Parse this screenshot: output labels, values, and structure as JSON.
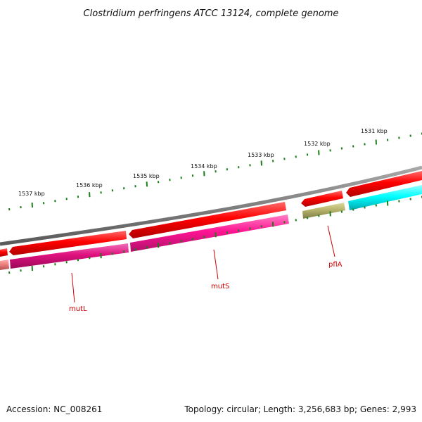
{
  "title": "Clostridium perfringens ATCC 13124, complete genome",
  "footer": {
    "accession": "Accession: NC_008261",
    "summary": "Topology: circular; Length: 3,256,683 bp; Genes: 2,993"
  },
  "ticks": {
    "major_labels": [
      "1531 kbp",
      "1532 kbp",
      "1533 kbp",
      "1534 kbp",
      "1535 kbp",
      "1536 kbp",
      "1537 kbp"
    ],
    "tick_color": "#1a7f1a"
  },
  "backbone_color": "#808080",
  "genes": {
    "forward_color": "#ff0000",
    "labels": [
      "mutL",
      "mutS",
      "pflA"
    ],
    "label_color": "#cc0000",
    "categories": {
      "mutL": "#e0107f",
      "mutS": "#ff1493",
      "pflA": "#b5b36b",
      "other": "#00ffff",
      "edge": "#f08080"
    }
  }
}
